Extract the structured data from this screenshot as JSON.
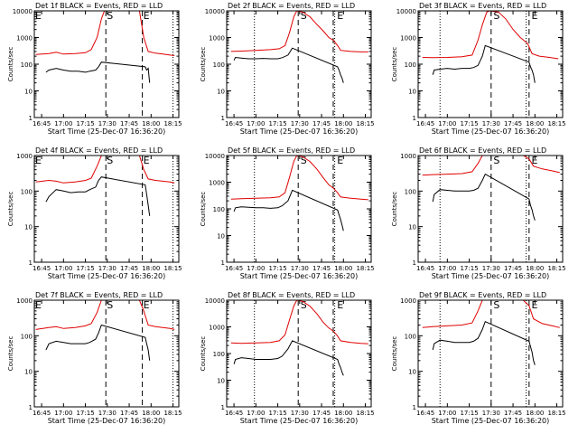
{
  "colors": {
    "events": "#000000",
    "lld": "#e00000",
    "axis": "#000000"
  },
  "shared": {
    "ylabel": "Counts/sec",
    "xlabel": "Start Time (25-Dec-07 16:36:20)",
    "xticks": [
      "16:45",
      "17:00",
      "17:15",
      "17:30",
      "17:45",
      "18:00",
      "18:15"
    ],
    "yticks": [
      "1",
      "10",
      "100",
      "1000",
      "10000"
    ],
    "marker_s": "S",
    "marker_e": "E",
    "y_scale": "log"
  },
  "chart_data": [
    {
      "type": "line",
      "title": "Det 1f BLACK = Events, RED = LLD",
      "ylim": [
        1,
        10000
      ],
      "dotted": [
        "16:40",
        "18:15"
      ],
      "dashed": [
        "17:29",
        "17:54"
      ],
      "markers": [
        {
          "label": "E",
          "at": "16:40"
        },
        {
          "label": "S",
          "at": "17:29"
        },
        {
          "label": "E",
          "at": "17:54"
        }
      ],
      "series": [
        {
          "x": [
            "16:41",
            "16:50",
            "16:55",
            "17:00",
            "17:08",
            "17:15",
            "17:19",
            "17:23",
            "17:26",
            "17:28",
            "17:52",
            "17:55",
            "17:58",
            "18:03",
            "18:08",
            "18:13",
            "18:16"
          ],
          "values": [
            230,
            250,
            280,
            240,
            250,
            270,
            350,
            1000,
            5000,
            10000,
            10000,
            1000,
            300,
            260,
            240,
            220,
            210
          ]
        },
        {
          "x": [
            "16:48",
            "16:50",
            "16:55",
            "17:00",
            "17:05",
            "17:10",
            "17:15",
            "17:18",
            "17:22",
            "17:24",
            "17:26",
            "17:56",
            "17:57",
            "17:58",
            "17:59"
          ],
          "values": [
            50,
            60,
            70,
            60,
            55,
            55,
            50,
            55,
            60,
            80,
            120,
            80,
            60,
            70,
            20
          ]
        }
      ]
    },
    {
      "type": "line",
      "title": "Det 2f BLACK = Events, RED = LLD",
      "ylim": [
        1,
        10000
      ],
      "dotted": [
        "16:59",
        "17:54"
      ],
      "dashed": [
        "17:29",
        "17:53"
      ],
      "markers": [
        {
          "label": "S",
          "at": "17:30"
        },
        {
          "label": "E",
          "at": "17:55"
        }
      ],
      "series": [
        {
          "x": [
            "16:43",
            "16:50",
            "17:00",
            "17:10",
            "17:16",
            "17:20",
            "17:23",
            "17:26",
            "17:28",
            "17:32",
            "17:37",
            "17:42",
            "17:46",
            "17:50",
            "17:53",
            "17:56",
            "17:58",
            "18:05",
            "18:12",
            "18:17"
          ],
          "values": [
            300,
            310,
            330,
            350,
            380,
            500,
            1500,
            6000,
            10000,
            9000,
            6000,
            3000,
            1800,
            1000,
            800,
            500,
            330,
            300,
            290,
            290
          ]
        },
        {
          "x": [
            "16:45",
            "16:46",
            "16:50",
            "16:55",
            "17:00",
            "17:05",
            "17:10",
            "17:15",
            "17:18",
            "17:22",
            "17:25",
            "17:56",
            "17:57",
            "17:58",
            "17:59",
            "18:00"
          ],
          "values": [
            140,
            180,
            170,
            160,
            160,
            165,
            160,
            160,
            175,
            220,
            400,
            80,
            60,
            40,
            30,
            20
          ]
        }
      ]
    },
    {
      "type": "line",
      "title": "Det 3f BLACK = Events, RED = LLD",
      "ylim": [
        1,
        10000
      ],
      "dotted": [
        "16:55",
        "17:54"
      ],
      "dashed": [
        "17:30",
        "17:56"
      ],
      "markers": [
        {
          "label": "S",
          "at": "17:31"
        },
        {
          "label": "E",
          "at": "17:57"
        }
      ],
      "series": [
        {
          "x": [
            "16:43",
            "16:50",
            "17:00",
            "17:10",
            "17:17",
            "17:21",
            "17:24",
            "17:27",
            "17:29",
            "17:35",
            "17:40",
            "17:45",
            "17:50",
            "17:55",
            "17:58",
            "18:03",
            "18:10",
            "18:16"
          ],
          "values": [
            180,
            175,
            180,
            190,
            220,
            800,
            3000,
            9000,
            10000,
            9000,
            5000,
            2000,
            1000,
            600,
            250,
            200,
            180,
            160
          ]
        },
        {
          "x": [
            "16:50",
            "16:51",
            "16:55",
            "17:00",
            "17:05",
            "17:10",
            "17:15",
            "17:18",
            "17:21",
            "17:24",
            "17:26",
            "17:56",
            "17:57",
            "17:58",
            "17:59",
            "18:00"
          ],
          "values": [
            40,
            60,
            65,
            70,
            65,
            70,
            70,
            75,
            90,
            200,
            500,
            120,
            80,
            60,
            40,
            20
          ]
        }
      ]
    },
    {
      "type": "line",
      "title": "Det 4f BLACK = Events, RED = LLD",
      "ylim": [
        1,
        1000
      ],
      "dotted": [
        "16:40",
        "18:15"
      ],
      "dashed": [
        "17:29",
        "17:54"
      ],
      "markers": [
        {
          "label": "E",
          "at": "16:40"
        },
        {
          "label": "S",
          "at": "17:29"
        },
        {
          "label": "E",
          "at": "17:54"
        }
      ],
      "series": [
        {
          "x": [
            "16:41",
            "16:50",
            "16:55",
            "17:00",
            "17:08",
            "17:15",
            "17:19",
            "17:23",
            "17:26",
            "17:28",
            "17:52",
            "17:55",
            "17:58",
            "18:03",
            "18:08",
            "18:13",
            "18:16"
          ],
          "values": [
            180,
            200,
            190,
            170,
            180,
            200,
            230,
            500,
            1000,
            1000,
            1000,
            400,
            220,
            200,
            190,
            180,
            170
          ]
        },
        {
          "x": [
            "16:48",
            "16:50",
            "16:55",
            "17:00",
            "17:05",
            "17:10",
            "17:15",
            "17:18",
            "17:22",
            "17:24",
            "17:26",
            "17:56",
            "17:57",
            "17:58",
            "17:59"
          ],
          "values": [
            50,
            70,
            110,
            100,
            90,
            95,
            95,
            110,
            130,
            200,
            250,
            150,
            80,
            40,
            20
          ]
        }
      ]
    },
    {
      "type": "line",
      "title": "Det 5f BLACK = Events, RED = LLD",
      "ylim": [
        1,
        10000
      ],
      "dotted": [
        "16:59",
        "17:54"
      ],
      "dashed": [
        "17:29",
        "17:53"
      ],
      "markers": [
        {
          "label": "S",
          "at": "17:30"
        },
        {
          "label": "E",
          "at": "17:55"
        }
      ],
      "series": [
        {
          "x": [
            "16:43",
            "16:50",
            "17:00",
            "17:10",
            "17:16",
            "17:20",
            "17:23",
            "17:26",
            "17:28",
            "17:32",
            "17:37",
            "17:42",
            "17:46",
            "17:50",
            "17:53",
            "17:56",
            "17:58",
            "18:05",
            "18:12",
            "18:17"
          ],
          "values": [
            230,
            240,
            250,
            260,
            280,
            400,
            1500,
            6000,
            10000,
            9000,
            6000,
            3000,
            1500,
            800,
            600,
            400,
            280,
            250,
            230,
            220
          ]
        },
        {
          "x": [
            "16:45",
            "16:46",
            "16:50",
            "16:55",
            "17:00",
            "17:05",
            "17:10",
            "17:15",
            "17:18",
            "17:22",
            "17:25",
            "17:56",
            "17:57",
            "17:58",
            "17:59",
            "18:00"
          ],
          "values": [
            80,
            110,
            120,
            115,
            110,
            110,
            105,
            110,
            130,
            200,
            500,
            90,
            60,
            40,
            25,
            15
          ]
        }
      ]
    },
    {
      "type": "line",
      "title": "Det 6f BLACK = Events, RED = LLD",
      "ylim": [
        1,
        1000
      ],
      "dotted": [
        "16:55",
        "17:54"
      ],
      "dashed": [
        "17:30",
        "17:56"
      ],
      "markers": [
        {
          "label": "S",
          "at": "17:31"
        },
        {
          "label": "E",
          "at": "17:57"
        }
      ],
      "series": [
        {
          "x": [
            "16:43",
            "16:50",
            "17:00",
            "17:10",
            "17:17",
            "17:21",
            "17:24",
            "17:27",
            "17:29",
            "17:35",
            "17:45",
            "17:52",
            "17:56",
            "17:59",
            "18:05",
            "18:12",
            "18:17"
          ],
          "values": [
            280,
            290,
            300,
            310,
            350,
            600,
            1000,
            1000,
            1000,
            1000,
            1000,
            1000,
            800,
            500,
            420,
            370,
            330
          ]
        },
        {
          "x": [
            "16:50",
            "16:51",
            "16:55",
            "17:00",
            "17:05",
            "17:10",
            "17:15",
            "17:18",
            "17:21",
            "17:24",
            "17:26",
            "17:56",
            "17:57",
            "17:58",
            "17:59",
            "18:00"
          ],
          "values": [
            50,
            80,
            110,
            105,
            100,
            100,
            100,
            105,
            120,
            200,
            300,
            60,
            40,
            30,
            20,
            15
          ]
        }
      ]
    },
    {
      "type": "line",
      "title": "Det 7f BLACK = Events, RED = LLD",
      "ylim": [
        1,
        1000
      ],
      "dotted": [
        "16:40",
        "18:15"
      ],
      "dashed": [
        "17:29",
        "17:54"
      ],
      "markers": [
        {
          "label": "E",
          "at": "16:40"
        },
        {
          "label": "S",
          "at": "17:29"
        },
        {
          "label": "E",
          "at": "17:54"
        }
      ],
      "series": [
        {
          "x": [
            "16:41",
            "16:50",
            "16:55",
            "17:00",
            "17:08",
            "17:15",
            "17:19",
            "17:23",
            "17:26",
            "17:28",
            "17:52",
            "17:55",
            "17:58",
            "18:03",
            "18:08",
            "18:13",
            "18:16"
          ],
          "values": [
            150,
            170,
            180,
            160,
            170,
            190,
            220,
            450,
            1000,
            1000,
            1000,
            500,
            200,
            180,
            170,
            160,
            150
          ]
        },
        {
          "x": [
            "16:48",
            "16:50",
            "16:55",
            "17:00",
            "17:05",
            "17:10",
            "17:15",
            "17:18",
            "17:22",
            "17:24",
            "17:26",
            "17:56",
            "17:57",
            "17:58",
            "17:59"
          ],
          "values": [
            40,
            60,
            70,
            65,
            60,
            60,
            60,
            65,
            80,
            120,
            200,
            90,
            60,
            40,
            20
          ]
        }
      ]
    },
    {
      "type": "line",
      "title": "Det 8f BLACK = Events, RED = LLD",
      "ylim": [
        1,
        10000
      ],
      "dotted": [
        "16:59",
        "17:54"
      ],
      "dashed": [
        "17:29",
        "17:53"
      ],
      "markers": [
        {
          "label": "S",
          "at": "17:30"
        },
        {
          "label": "E",
          "at": "17:55"
        }
      ],
      "series": [
        {
          "x": [
            "16:43",
            "16:50",
            "17:00",
            "17:10",
            "17:16",
            "17:20",
            "17:23",
            "17:26",
            "17:28",
            "17:32",
            "17:37",
            "17:42",
            "17:46",
            "17:50",
            "17:53",
            "17:56",
            "17:58",
            "18:05",
            "18:12",
            "18:17"
          ],
          "values": [
            250,
            240,
            250,
            260,
            300,
            500,
            1800,
            6000,
            10000,
            9000,
            6000,
            3000,
            1500,
            900,
            700,
            450,
            300,
            260,
            240,
            230
          ]
        },
        {
          "x": [
            "16:45",
            "16:46",
            "16:50",
            "16:55",
            "17:00",
            "17:05",
            "17:10",
            "17:15",
            "17:18",
            "17:22",
            "17:25",
            "17:56",
            "17:57",
            "17:58",
            "17:59",
            "18:00"
          ],
          "values": [
            40,
            60,
            70,
            65,
            60,
            60,
            60,
            65,
            80,
            150,
            300,
            60,
            40,
            30,
            20,
            15
          ]
        }
      ]
    },
    {
      "type": "line",
      "title": "Det 9f BLACK = Events, RED = LLD",
      "ylim": [
        1,
        1000
      ],
      "dotted": [
        "16:55",
        "17:54"
      ],
      "dashed": [
        "17:30",
        "17:56"
      ],
      "markers": [
        {
          "label": "S",
          "at": "17:31"
        },
        {
          "label": "E",
          "at": "17:57"
        }
      ],
      "series": [
        {
          "x": [
            "16:43",
            "16:50",
            "17:00",
            "17:10",
            "17:17",
            "17:21",
            "17:24",
            "17:27",
            "17:29",
            "17:35",
            "17:45",
            "17:52",
            "17:56",
            "17:59",
            "18:05",
            "18:12",
            "18:17"
          ],
          "values": [
            170,
            180,
            190,
            200,
            230,
            500,
            1000,
            1000,
            1000,
            1000,
            1000,
            1000,
            700,
            300,
            220,
            190,
            170
          ]
        },
        {
          "x": [
            "16:50",
            "16:51",
            "16:55",
            "17:00",
            "17:05",
            "17:10",
            "17:15",
            "17:18",
            "17:21",
            "17:24",
            "17:26",
            "17:56",
            "17:57",
            "17:58",
            "17:59",
            "18:00"
          ],
          "values": [
            40,
            60,
            75,
            70,
            65,
            65,
            65,
            70,
            85,
            150,
            250,
            70,
            50,
            35,
            20,
            15
          ]
        }
      ]
    }
  ]
}
